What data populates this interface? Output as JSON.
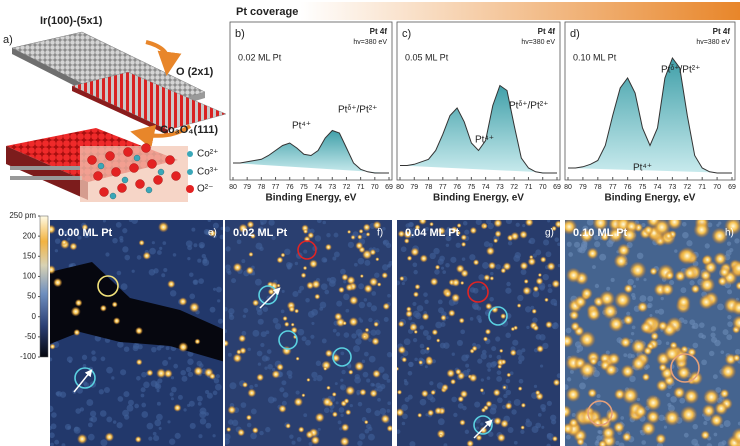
{
  "panel_a": {
    "label": "a)",
    "substrate": "Ir(100)-(5x1)",
    "oxide_layer": "O (2x1)",
    "film": "Co₃O₄(111)",
    "legend": [
      "Co²⁺",
      "Co³⁺",
      "O²⁻"
    ]
  },
  "coverage_label": "Pt coverage",
  "xps": {
    "xlabel": "Binding Energy, eV",
    "xlim": [
      80,
      69
    ],
    "ylim": [
      0,
      100
    ],
    "xticks": [
      80,
      79,
      78,
      77,
      76,
      75,
      74,
      73,
      72,
      71,
      70,
      69
    ],
    "x": [
      80,
      79.5,
      79,
      78.5,
      78,
      77.5,
      77,
      76.5,
      76,
      75.5,
      75,
      74.5,
      74,
      73.5,
      73,
      72.5,
      72,
      71.5,
      71,
      70.5,
      70,
      69.5,
      69
    ],
    "panels": [
      {
        "label": "b)",
        "line": "Pt 4f",
        "photon": "hv=380 eV",
        "coverage": "0.02 ML Pt",
        "peak_a": "Pt⁴⁺",
        "peak_b": "Ptᵟ⁺/Pt²⁺",
        "values": [
          12,
          12,
          13,
          14,
          15,
          18,
          22,
          26,
          28,
          24,
          19,
          18,
          22,
          32,
          38,
          36,
          24,
          12,
          7,
          5,
          4,
          4,
          4
        ]
      },
      {
        "label": "c)",
        "line": "Pt 4f",
        "photon": "hv=380 eV",
        "coverage": "0.05 ML Pt",
        "peak_a": "Pt⁴⁺",
        "peak_b": "Ptᵟ⁺/Pt²⁺",
        "values": [
          10,
          10,
          11,
          13,
          15,
          22,
          35,
          50,
          56,
          45,
          28,
          22,
          30,
          58,
          74,
          70,
          42,
          16,
          8,
          5,
          4,
          4,
          4
        ]
      },
      {
        "label": "d)",
        "line": "Pt 4f",
        "photon": "hv=380 eV",
        "coverage": "0.10 ML Pt",
        "peak_a": "Pt⁴⁺",
        "peak_b": "Ptᵟ⁺/Pt²⁺",
        "values": [
          8,
          8,
          9,
          11,
          14,
          26,
          50,
          72,
          80,
          68,
          40,
          26,
          40,
          80,
          96,
          88,
          50,
          18,
          8,
          5,
          4,
          4,
          4
        ]
      }
    ]
  },
  "colorbar": {
    "lim": [
      -100,
      250
    ],
    "ticks": [
      {
        "value": 250,
        "label": "250 pm"
      },
      200,
      150,
      100,
      50,
      0,
      -50,
      -100
    ]
  },
  "stm": [
    {
      "coverage": "0.00 ML Pt",
      "label": "e)"
    },
    {
      "coverage": "0.02 ML Pt",
      "label": "f)"
    },
    {
      "coverage": "0.04 ML Pt",
      "label": "g)"
    },
    {
      "coverage": "0.10 ML Pt",
      "label": "h)"
    }
  ]
}
